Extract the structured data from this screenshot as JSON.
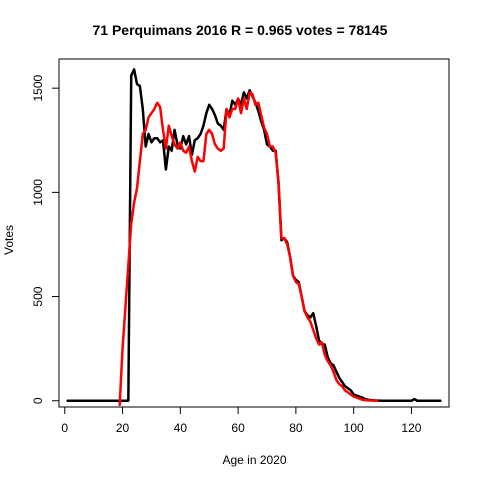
{
  "chart_data": {
    "type": "line",
    "title": "71 Perquimans 2016 R = 0.965 votes = 78145",
    "xlabel": "Age in 2020",
    "ylabel": "Votes",
    "xlim": [
      -2,
      133
    ],
    "ylim": [
      -30,
      1640
    ],
    "x_ticks": [
      0,
      20,
      40,
      60,
      80,
      100,
      120
    ],
    "y_ticks": [
      0,
      500,
      1000,
      1500
    ],
    "grid": false,
    "legend": "none",
    "series": [
      {
        "color": "#000000",
        "x": [
          1,
          21,
          22,
          23,
          24,
          25,
          26,
          27,
          28,
          29,
          30,
          31,
          32,
          33,
          34,
          35,
          36,
          37,
          38,
          39,
          40,
          41,
          42,
          43,
          44,
          45,
          46,
          47,
          48,
          49,
          50,
          51,
          52,
          53,
          54,
          55,
          56,
          57,
          58,
          59,
          60,
          61,
          62,
          63,
          64,
          65,
          66,
          67,
          68,
          69,
          70,
          71,
          72,
          73,
          74,
          75,
          76,
          77,
          78,
          79,
          80,
          81,
          82,
          83,
          84,
          85,
          86,
          87,
          88,
          89,
          90,
          91,
          92,
          93,
          94,
          95,
          96,
          97,
          98,
          99,
          100,
          101,
          102,
          103,
          104,
          105,
          106,
          107,
          108,
          110,
          120,
          121,
          122,
          130
        ],
        "values": [
          0,
          0,
          0,
          1560,
          1590,
          1520,
          1510,
          1400,
          1220,
          1280,
          1240,
          1260,
          1260,
          1240,
          1250,
          1110,
          1220,
          1200,
          1300,
          1230,
          1210,
          1270,
          1230,
          1270,
          1180,
          1250,
          1260,
          1280,
          1320,
          1380,
          1420,
          1400,
          1370,
          1330,
          1320,
          1300,
          1400,
          1370,
          1440,
          1420,
          1450,
          1420,
          1480,
          1450,
          1490,
          1460,
          1430,
          1390,
          1340,
          1300,
          1230,
          1220,
          1200,
          1200,
          1040,
          770,
          780,
          760,
          690,
          600,
          580,
          570,
          500,
          430,
          410,
          400,
          420,
          360,
          290,
          270,
          270,
          210,
          180,
          170,
          140,
          110,
          90,
          70,
          60,
          50,
          30,
          25,
          20,
          15,
          8,
          5,
          3,
          2,
          1,
          0,
          0,
          8,
          0,
          0
        ]
      },
      {
        "color": "#ff0000",
        "x": [
          19,
          20,
          21,
          22,
          23,
          24,
          25,
          26,
          27,
          28,
          29,
          30,
          31,
          32,
          33,
          34,
          35,
          36,
          37,
          38,
          39,
          40,
          41,
          42,
          43,
          44,
          45,
          46,
          47,
          48,
          49,
          50,
          51,
          52,
          53,
          54,
          55,
          56,
          57,
          58,
          59,
          60,
          61,
          62,
          63,
          64,
          65,
          66,
          67,
          68,
          69,
          70,
          71,
          72,
          73,
          74,
          75,
          76,
          77,
          78,
          79,
          80,
          81,
          82,
          83,
          84,
          85,
          86,
          87,
          88,
          89,
          90,
          91,
          92,
          93,
          94,
          95,
          96,
          97,
          98,
          99,
          100,
          101,
          102,
          103,
          104,
          105,
          106,
          107,
          108
        ],
        "values": [
          -20,
          250,
          450,
          650,
          850,
          950,
          1020,
          1150,
          1280,
          1300,
          1360,
          1380,
          1400,
          1430,
          1410,
          1300,
          1210,
          1320,
          1270,
          1230,
          1210,
          1240,
          1200,
          1190,
          1220,
          1150,
          1100,
          1170,
          1150,
          1150,
          1280,
          1300,
          1280,
          1230,
          1210,
          1200,
          1210,
          1400,
          1360,
          1400,
          1400,
          1450,
          1380,
          1450,
          1400,
          1480,
          1470,
          1420,
          1430,
          1370,
          1310,
          1280,
          1220,
          1220,
          1190,
          1050,
          780,
          780,
          750,
          690,
          600,
          570,
          560,
          500,
          430,
          400,
          380,
          340,
          300,
          270,
          280,
          220,
          190,
          170,
          140,
          100,
          80,
          70,
          50,
          40,
          30,
          20,
          15,
          10,
          5,
          3,
          2,
          1,
          0,
          0
        ]
      }
    ]
  }
}
